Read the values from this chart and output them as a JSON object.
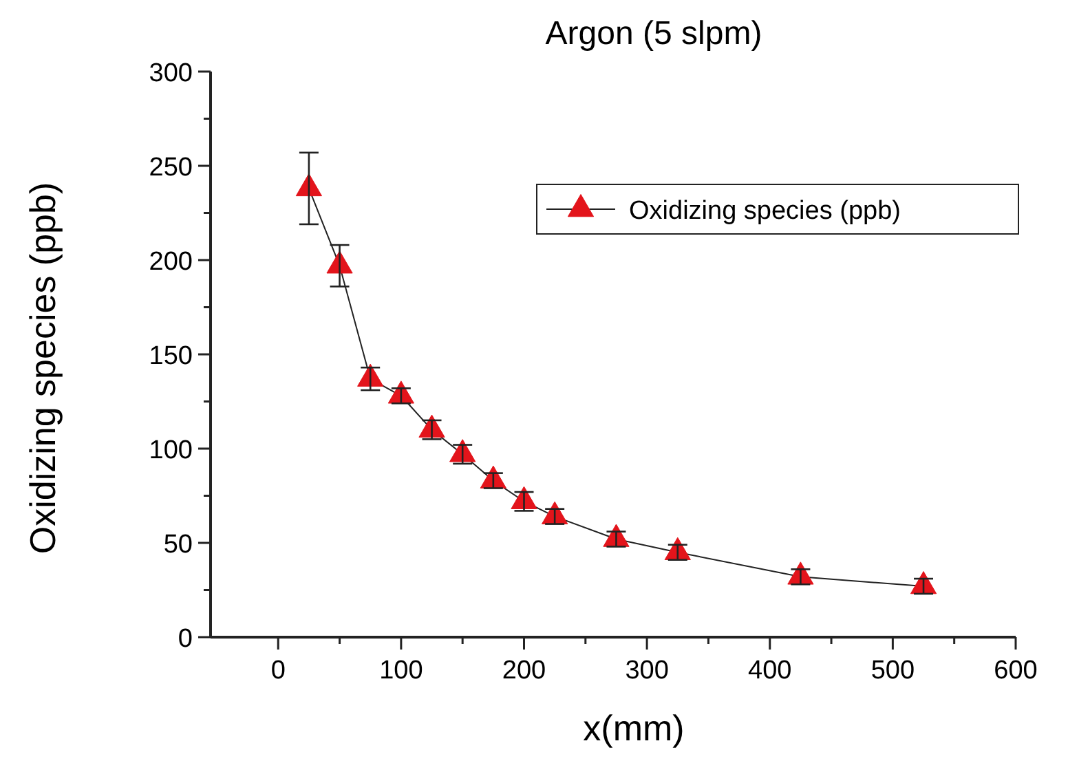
{
  "chart_data": {
    "type": "line",
    "title": "Argon (5 slpm)",
    "xlabel": "x(mm)",
    "ylabel": "Oxidizing species (ppb)",
    "x": [
      25,
      50,
      75,
      100,
      125,
      150,
      175,
      200,
      225,
      275,
      325,
      425,
      525
    ],
    "series": [
      {
        "name": "Oxidizing species (ppb)",
        "color": "#e3141b",
        "values": [
          238,
          197,
          137,
          128,
          110,
          97,
          83,
          72,
          64,
          52,
          45,
          32,
          27
        ],
        "errors": [
          19,
          11,
          6,
          4,
          5,
          5,
          4,
          5,
          4,
          4,
          4,
          4,
          4
        ]
      }
    ],
    "marker": "triangle",
    "line_style": "solid",
    "legend": "top right",
    "grid": false,
    "xlim": [
      -55,
      600
    ],
    "xticks": [
      0,
      {
        "value": 50,
        "label": null
      },
      100,
      {
        "value": 150,
        "label": null
      },
      200,
      {
        "value": 250,
        "label": null
      },
      300,
      {
        "value": 350,
        "label": null
      },
      400,
      {
        "value": 450,
        "label": null
      },
      500,
      {
        "value": 550,
        "label": null
      },
      600
    ],
    "ylim": [
      0,
      300
    ],
    "yticks": [
      0,
      {
        "value": 25,
        "label": null
      },
      50,
      {
        "value": 75,
        "label": null
      },
      100,
      {
        "value": 125,
        "label": null
      },
      150,
      {
        "value": 175,
        "label": null
      },
      200,
      {
        "value": 225,
        "label": null
      },
      250,
      {
        "value": 275,
        "label": null
      },
      300
    ]
  }
}
